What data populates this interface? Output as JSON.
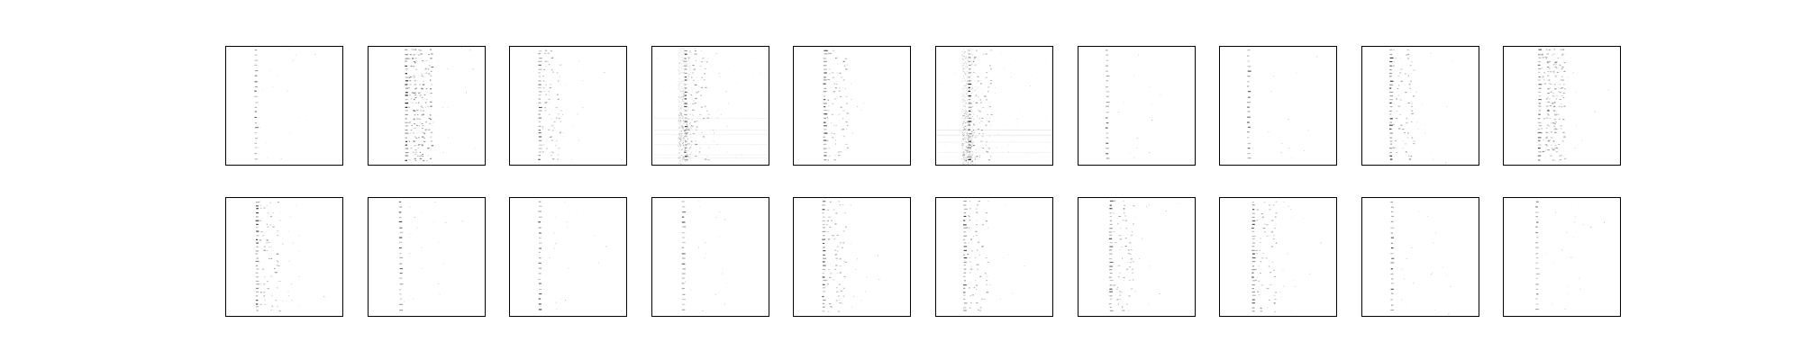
{
  "figure": {
    "background": "#ffffff",
    "frame_color": "#000000",
    "ink_color": "#000000",
    "rows": 2,
    "columns": 10,
    "ticks_visible": false,
    "labels_visible": false
  },
  "panels": [
    {
      "row": 1,
      "col": 1,
      "pattern": "sparse-column",
      "column_x": 0.25,
      "intensity": 0.55
    },
    {
      "row": 1,
      "col": 2,
      "pattern": "dense-cluster",
      "column_x": 0.32,
      "intensity": 0.8
    },
    {
      "row": 1,
      "col": 3,
      "pattern": "sparse-columns",
      "column_x": 0.25,
      "intensity": 0.55
    },
    {
      "row": 1,
      "col": 4,
      "pattern": "noise-band",
      "column_x": 0.28,
      "intensity": 0.65
    },
    {
      "row": 1,
      "col": 5,
      "pattern": "sparse-columns",
      "column_x": 0.26,
      "intensity": 0.65
    },
    {
      "row": 1,
      "col": 6,
      "pattern": "noise-band",
      "column_x": 0.28,
      "intensity": 0.75
    },
    {
      "row": 1,
      "col": 7,
      "pattern": "sparse-column",
      "column_x": 0.24,
      "intensity": 0.55
    },
    {
      "row": 1,
      "col": 8,
      "pattern": "sparse-column",
      "column_x": 0.24,
      "intensity": 0.55
    },
    {
      "row": 1,
      "col": 9,
      "pattern": "sparse-columns",
      "column_x": 0.24,
      "intensity": 0.7
    },
    {
      "row": 1,
      "col": 10,
      "pattern": "dense-cluster",
      "column_x": 0.3,
      "intensity": 0.55
    },
    {
      "row": 2,
      "col": 1,
      "pattern": "sparse-columns",
      "column_x": 0.26,
      "intensity": 0.7
    },
    {
      "row": 2,
      "col": 2,
      "pattern": "sparse-column",
      "column_x": 0.27,
      "intensity": 0.6
    },
    {
      "row": 2,
      "col": 3,
      "pattern": "sparse-column",
      "column_x": 0.25,
      "intensity": 0.6
    },
    {
      "row": 2,
      "col": 4,
      "pattern": "sparse-column",
      "column_x": 0.26,
      "intensity": 0.55
    },
    {
      "row": 2,
      "col": 5,
      "pattern": "sparse-columns",
      "column_x": 0.25,
      "intensity": 0.6
    },
    {
      "row": 2,
      "col": 6,
      "pattern": "sparse-columns",
      "column_x": 0.24,
      "intensity": 0.65
    },
    {
      "row": 2,
      "col": 7,
      "pattern": "sparse-columns",
      "column_x": 0.27,
      "intensity": 0.6
    },
    {
      "row": 2,
      "col": 8,
      "pattern": "sparse-columns",
      "column_x": 0.28,
      "intensity": 0.65
    },
    {
      "row": 2,
      "col": 9,
      "pattern": "sparse-column",
      "column_x": 0.25,
      "intensity": 0.65
    },
    {
      "row": 2,
      "col": 10,
      "pattern": "sparse-column",
      "column_x": 0.28,
      "intensity": 0.45
    }
  ]
}
